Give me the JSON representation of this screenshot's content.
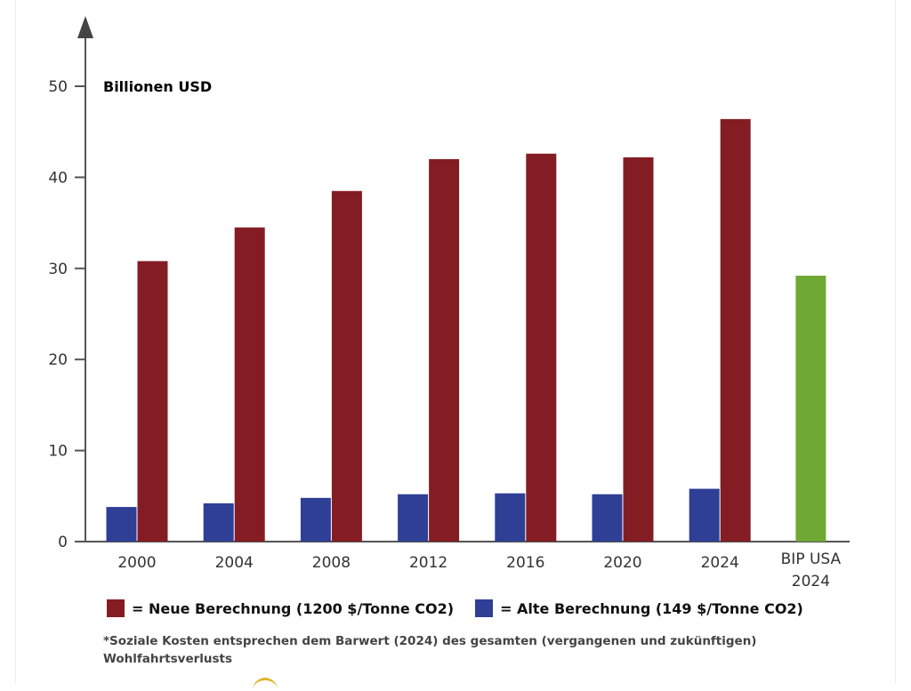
{
  "chart_data": {
    "type": "bar",
    "unit_label": "Billionen USD",
    "categories": [
      "2000",
      "2004",
      "2008",
      "2012",
      "2016",
      "2020",
      "2024"
    ],
    "series": [
      {
        "name": "= Alte Berechnung (149 $/Tonne CO2)",
        "color": "#2f3f96",
        "values": [
          3.8,
          4.2,
          4.8,
          5.2,
          5.3,
          5.2,
          5.8
        ]
      },
      {
        "name": "= Neue Berechnung (1200 $/Tonne CO2)",
        "color": "#841d23",
        "values": [
          30.8,
          34.5,
          38.5,
          42.0,
          42.6,
          42.2,
          46.4
        ]
      }
    ],
    "extra_bar": {
      "label_lines": [
        "BIP USA",
        "2024"
      ],
      "value": 29.2,
      "color": "#6fa835"
    },
    "y_ticks": [
      0,
      10,
      20,
      30,
      40,
      50
    ],
    "ylim": [
      0,
      55
    ],
    "grid": false,
    "legend_position": "bottom"
  },
  "legend": [
    {
      "label": "= Neue Berechnung (1200 $/Tonne CO2)",
      "color": "#841d23"
    },
    {
      "label": "= Alte Berechnung (149 $/Tonne CO2)",
      "color": "#2f3f96"
    }
  ],
  "footnote": "*Soziale Kosten entsprechen dem Barwert (2024) des gesamten (vergangenen und zukünftigen) Wohlfahrtsverlusts"
}
